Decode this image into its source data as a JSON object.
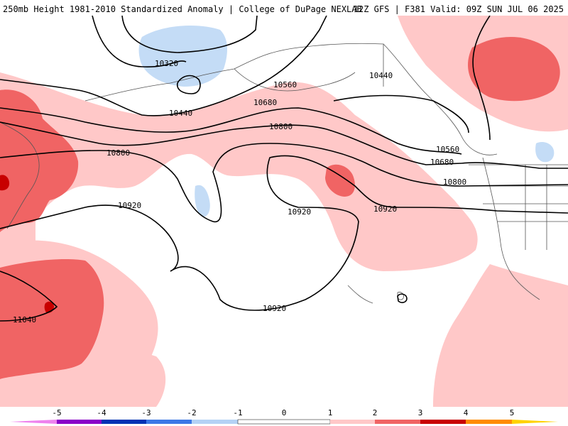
{
  "header": {
    "title_left": "250mb Height 1981-2010 Standardized Anomaly | College of DuPage NEXLAB",
    "title_right": "12Z GFS | F381 Valid: 09Z SUN JUL 06 2025"
  },
  "contour_labels": [
    {
      "id": "c10320",
      "text": "10320"
    },
    {
      "id": "c10440a",
      "text": "10440"
    },
    {
      "id": "c10440b",
      "text": "10440"
    },
    {
      "id": "c10560a",
      "text": "10560"
    },
    {
      "id": "c10560b",
      "text": "10560"
    },
    {
      "id": "c10680a",
      "text": "10680"
    },
    {
      "id": "c10680b",
      "text": "10680"
    },
    {
      "id": "c10800a",
      "text": "10800"
    },
    {
      "id": "c10800b",
      "text": "10800"
    },
    {
      "id": "c10800c",
      "text": "10800"
    },
    {
      "id": "c10920a",
      "text": "10920"
    },
    {
      "id": "c10920b",
      "text": "10920"
    },
    {
      "id": "c10920c",
      "text": "10920"
    },
    {
      "id": "c10920d",
      "text": "10920"
    },
    {
      "id": "c11040",
      "text": "11040"
    }
  ],
  "colorbar": {
    "ticks": [
      "-5",
      "-4",
      "-3",
      "-2",
      "-1",
      "0",
      "1",
      "2",
      "3",
      "4",
      "5"
    ],
    "colors": {
      "neg5": "#ee82ee",
      "neg4": "#8a00c8",
      "neg3": "#0032b4",
      "neg2": "#3c78e6",
      "neg1": "#b4d2f5",
      "zero": "#ffffff",
      "pos1": "#ffc8c8",
      "pos2": "#f06464",
      "pos3": "#c80000",
      "pos4": "#ff8c00",
      "pos5": "#ffd200"
    }
  },
  "shading_colors": {
    "light_red": "#ffc8c8",
    "medium_red": "#f06464",
    "dark_red": "#c80000",
    "light_blue": "#c4dcf6",
    "contour": "#000000",
    "land_outline": "#555555"
  }
}
